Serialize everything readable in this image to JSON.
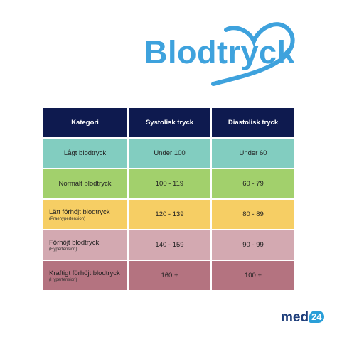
{
  "header": {
    "title": "Blodtryck"
  },
  "table": {
    "columns": [
      "Kategori",
      "Systolisk tryck",
      "Diastolisk tryck"
    ],
    "rows": [
      {
        "category": "Lågt blodtryck",
        "systolic": "Under 100",
        "diastolic": "Under 60",
        "color": "#82cdc0"
      },
      {
        "category": "Normalt blodtryck",
        "systolic": "100 - 119",
        "diastolic": "60 - 79",
        "color": "#a2d06c"
      },
      {
        "category": "Lätt förhöjt blodtryck",
        "note": "(Praehypertension)",
        "systolic": "120 - 139",
        "diastolic": "80 - 89",
        "color": "#f6ce64"
      },
      {
        "category": "Förhöjt blodtryck",
        "note": "(Hypertension)",
        "systolic": "140 - 159",
        "diastolic": "90 - 99",
        "color": "#d3a9b1"
      },
      {
        "category": "Kraftigt förhöjt blodtryck",
        "note": "(Hypertension)",
        "systolic": "160 +",
        "diastolic": "100 +",
        "color": "#b47380"
      }
    ]
  },
  "logo": {
    "text": "med",
    "badge": "24"
  }
}
